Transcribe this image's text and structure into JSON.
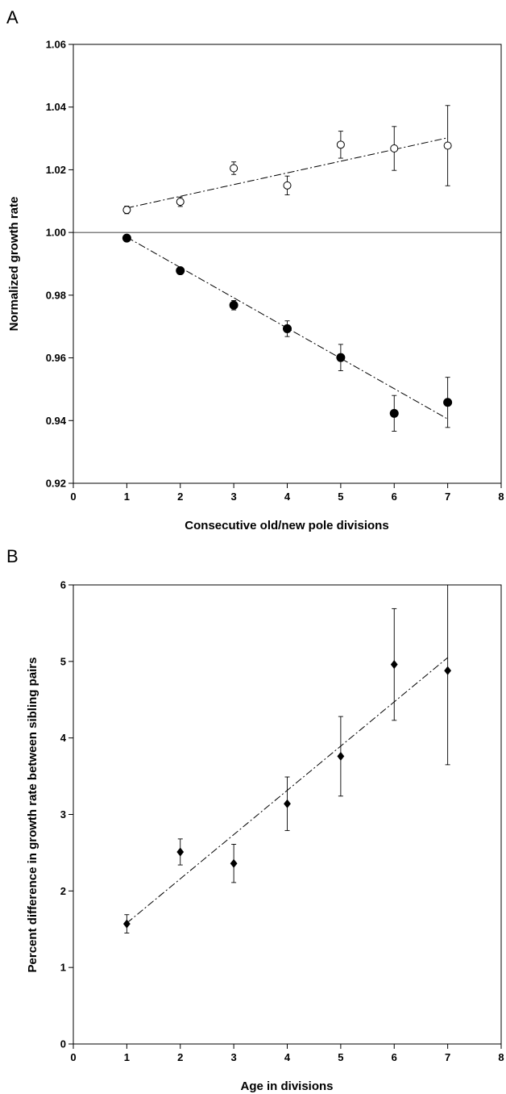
{
  "chart_data": [
    {
      "panel": "A",
      "type": "scatter",
      "xlabel": "Consecutive old/new pole divisions",
      "ylabel": "Normalized growth rate",
      "xlim": [
        0,
        8
      ],
      "ylim": [
        0.92,
        1.06
      ],
      "xticks": [
        "0",
        "1",
        "2",
        "3",
        "4",
        "5",
        "6",
        "7",
        "8"
      ],
      "yticks": [
        "0.92",
        "0.94",
        "0.96",
        "0.98",
        "1.00",
        "1.02",
        "1.04",
        "1.06"
      ],
      "reference_line_y": 1.0,
      "grid": false,
      "series": [
        {
          "marker": "open-circle",
          "x": [
            1,
            2,
            3,
            4,
            5,
            6,
            7
          ],
          "y": [
            1.0072,
            1.0098,
            1.0205,
            1.015,
            1.028,
            1.0268,
            1.0277
          ],
          "err": [
            0.0012,
            0.0015,
            0.002,
            0.003,
            0.0043,
            0.007,
            0.0128
          ],
          "trend": [
            1.0078,
            1.0302
          ]
        },
        {
          "marker": "filled-circle",
          "x": [
            1,
            2,
            3,
            4,
            5,
            6,
            7
          ],
          "y": [
            0.9982,
            0.9878,
            0.9768,
            0.9693,
            0.9601,
            0.9423,
            0.9458
          ],
          "err": [
            0.0008,
            0.001,
            0.0015,
            0.0025,
            0.0042,
            0.0057,
            0.008
          ],
          "trend": [
            0.9985,
            0.9405
          ]
        }
      ]
    },
    {
      "panel": "B",
      "type": "scatter",
      "xlabel": "Age in divisions",
      "ylabel": "Percent difference in growth rate between sibling pairs",
      "xlim": [
        0,
        8
      ],
      "ylim": [
        0,
        6
      ],
      "xticks": [
        "0",
        "1",
        "2",
        "3",
        "4",
        "5",
        "6",
        "7",
        "8"
      ],
      "yticks": [
        "0",
        "1",
        "2",
        "3",
        "4",
        "5",
        "6"
      ],
      "grid": false,
      "series": [
        {
          "marker": "filled-diamond",
          "x": [
            1,
            2,
            3,
            4,
            5,
            6,
            7
          ],
          "y": [
            1.57,
            2.51,
            2.36,
            3.14,
            3.76,
            4.96,
            4.88
          ],
          "err": [
            0.12,
            0.17,
            0.25,
            0.35,
            0.52,
            0.73,
            1.23
          ],
          "trend": [
            1.58,
            5.05
          ]
        }
      ]
    }
  ]
}
